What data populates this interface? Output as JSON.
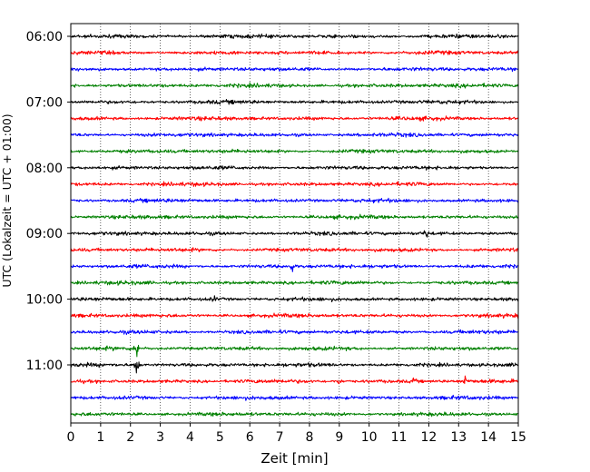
{
  "chart_data": {
    "type": "line",
    "xlabel": "Zeit  [min]",
    "ylabel": "UTC (Lokalzeit = UTC + 01:00)",
    "xlim": [
      0,
      15
    ],
    "x_ticks": [
      0,
      1,
      2,
      3,
      4,
      5,
      6,
      7,
      8,
      9,
      10,
      11,
      12,
      13,
      14,
      15
    ],
    "y_tick_labels": [
      "06:00",
      "07:00",
      "08:00",
      "09:00",
      "10:00",
      "11:00"
    ],
    "trace_start_times": [
      "06:00",
      "06:15",
      "06:30",
      "06:45",
      "07:00",
      "07:15",
      "07:30",
      "07:45",
      "08:00",
      "08:15",
      "08:30",
      "08:45",
      "09:00",
      "09:15",
      "09:30",
      "09:45",
      "10:00",
      "10:15",
      "10:30",
      "10:45",
      "11:00",
      "11:15",
      "11:30",
      "11:45"
    ],
    "trace_colors": [
      "#000000",
      "#ff0000",
      "#0000ff",
      "#008000"
    ],
    "grid": "vertical dotted",
    "events": [
      {
        "trace": "10:45",
        "minute": 2.2,
        "amplitude": "large"
      },
      {
        "trace": "11:00",
        "minute": 2.2,
        "amplitude": "large"
      },
      {
        "trace": "09:00",
        "minute": 11.9,
        "amplitude": "medium"
      },
      {
        "trace": "09:30",
        "minute": 7.4,
        "amplitude": "medium"
      },
      {
        "trace": "10:00",
        "minute": 4.8,
        "amplitude": "small"
      },
      {
        "trace": "11:15",
        "minute": 13.2,
        "amplitude": "medium"
      },
      {
        "trace": "11:15",
        "minute": 11.5,
        "amplitude": "small"
      },
      {
        "trace": "11:15",
        "minute": 9.0,
        "amplitude": "small"
      }
    ]
  }
}
